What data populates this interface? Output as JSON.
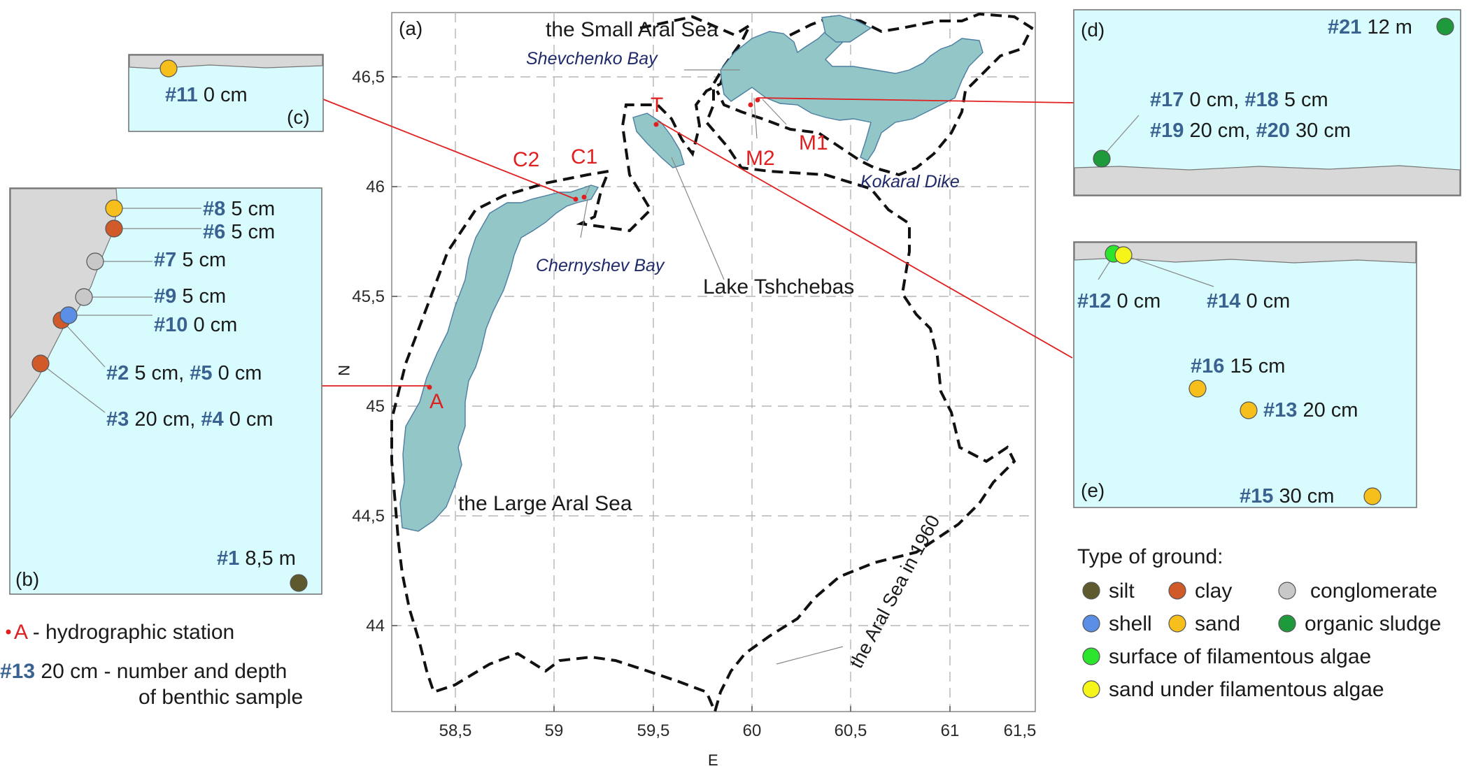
{
  "map": {
    "panel_label": "(a)",
    "x_axis_label": "E",
    "y_axis_label": "N",
    "x_ticks": [
      "58,5",
      "59",
      "59,5",
      "60",
      "60,5",
      "61",
      "61,5"
    ],
    "y_ticks": [
      "46,5",
      "46",
      "45,5",
      "45",
      "44,5",
      "44"
    ],
    "place_labels": {
      "small_aral": "the Small Aral Sea",
      "large_aral": "the Large Aral Sea",
      "aral_1960": "the Aral Sea in 1960",
      "lake": "Lake Tshchebas",
      "shevchenko": "Shevchenko Bay",
      "chernyshev": "Chernyshev Bay",
      "kokaral": "Kokaral Dike"
    },
    "stations": [
      "A",
      "T",
      "C1",
      "C2",
      "M1",
      "M2"
    ]
  },
  "panel_b": {
    "label": "(b)",
    "samples": [
      {
        "id": "#8",
        "depth": "5 cm",
        "ground": "sand"
      },
      {
        "id": "#6",
        "depth": "5 cm",
        "ground": "clay"
      },
      {
        "id": "#7",
        "depth": "5 cm",
        "ground": "conglomerate"
      },
      {
        "id": "#9",
        "depth": "5 cm",
        "ground": "conglomerate"
      },
      {
        "id": "#10",
        "depth": "0 cm",
        "ground": "shell"
      },
      {
        "id": "#2",
        "depth": "5 cm,",
        "id2": "#5",
        "depth2": "0 cm",
        "ground": "clay"
      },
      {
        "id": "#3",
        "depth": "20 cm,",
        "id2": "#4",
        "depth2": "0 cm",
        "ground": "clay"
      },
      {
        "id": "#1",
        "depth": "8,5 m",
        "ground": "silt"
      }
    ]
  },
  "panel_c": {
    "label": "(c)",
    "samples": [
      {
        "id": "#11",
        "depth": "0 cm",
        "ground": "sand"
      }
    ]
  },
  "panel_d": {
    "label": "(d)",
    "samples": [
      {
        "id": "#21",
        "depth": "12 m",
        "ground": "organic sludge"
      },
      {
        "id": "#17",
        "depth": "0 cm,",
        "id2": "#18",
        "depth2": "5 cm"
      },
      {
        "id": "#19",
        "depth": "20 cm,",
        "id2": "#20",
        "depth2": "30 cm"
      }
    ]
  },
  "panel_e": {
    "label": "(e)",
    "samples": [
      {
        "id": "#12",
        "depth": "0 cm",
        "ground": "surface of filamentous algae"
      },
      {
        "id": "#14",
        "depth": "0 cm",
        "ground": "sand under filamentous algae"
      },
      {
        "id": "#16",
        "depth": "15 cm",
        "ground": "sand"
      },
      {
        "id": "#13",
        "depth": "20 cm",
        "ground": "sand"
      },
      {
        "id": "#15",
        "depth": "30 cm",
        "ground": "sand"
      }
    ]
  },
  "legend": {
    "title": "Type of ground:",
    "items": [
      {
        "label": "silt",
        "color": "#5e5a2e"
      },
      {
        "label": "clay",
        "color": "#d05a2a"
      },
      {
        "label": "conglomerate",
        "color": "#c8c8c8"
      },
      {
        "label": "shell",
        "color": "#5b8fe6"
      },
      {
        "label": "sand",
        "color": "#f7bf1b"
      },
      {
        "label": "organic sludge",
        "color": "#1e9a3c"
      },
      {
        "label": "surface of filamentous algae",
        "color": "#2ee52e"
      },
      {
        "label": "sand under filamentous algae",
        "color": "#f5f51a"
      }
    ]
  },
  "key": {
    "station_symbol": "A",
    "station_text": "- hydrographic station",
    "sample_id": "#13",
    "sample_depth": "20 cm",
    "sample_text_1": "- number and depth",
    "sample_text_2": "of benthic sample"
  },
  "colors": {
    "water": "#93c6c7",
    "panel_water": "#d8fbfd",
    "ground": "#d8d8d8",
    "station": "#e02020",
    "sample_number": "#3a6291",
    "bay_label": "#1f2a6b"
  }
}
